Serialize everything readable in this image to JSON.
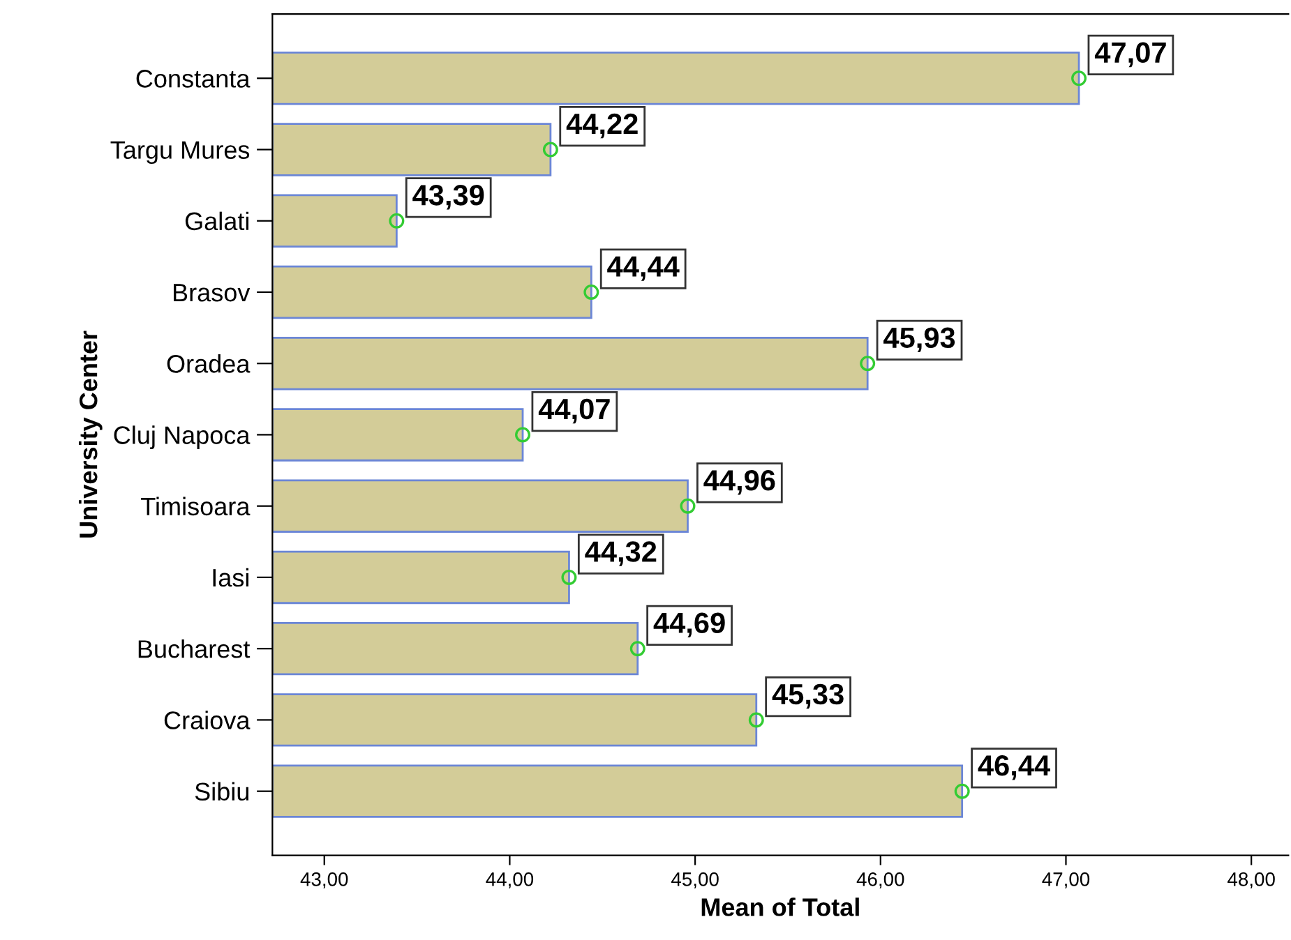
{
  "chart_data": {
    "type": "bar",
    "orientation": "horizontal",
    "xlabel": "Mean of Total",
    "ylabel": "University Center",
    "categories": [
      "Constanta",
      "Targu Mures",
      "Galati",
      "Brasov",
      "Oradea",
      "Cluj Napoca",
      "Timisoara",
      "Iasi",
      "Bucharest",
      "Craiova",
      "Sibiu"
    ],
    "series": [
      {
        "type": "bar",
        "color": "#d3cc98",
        "values": [
          47.07,
          44.22,
          43.39,
          44.44,
          45.93,
          44.07,
          44.96,
          44.32,
          44.69,
          45.33,
          46.44
        ],
        "value_labels": [
          "47,07",
          "44,22",
          "43,39",
          "44,44",
          "45,93",
          "44,07",
          "44,96",
          "44,32",
          "44,69",
          "45,33",
          "46,44"
        ]
      },
      {
        "type": "scatter",
        "color": "#33cc33",
        "marker": "circle",
        "values": [
          47.07,
          44.22,
          43.39,
          44.44,
          45.93,
          44.07,
          44.96,
          44.32,
          44.69,
          45.33,
          46.44
        ]
      }
    ],
    "grid": false,
    "xlim": [
      42.72,
      48.2
    ],
    "xticks": [
      {
        "value": 43,
        "label": "43,00"
      },
      {
        "value": 44,
        "label": "44,00"
      },
      {
        "value": 45,
        "label": "45,00"
      },
      {
        "value": 46,
        "label": "46,00"
      },
      {
        "value": 47,
        "label": "47,00"
      },
      {
        "value": 48,
        "label": "48,00"
      }
    ]
  }
}
